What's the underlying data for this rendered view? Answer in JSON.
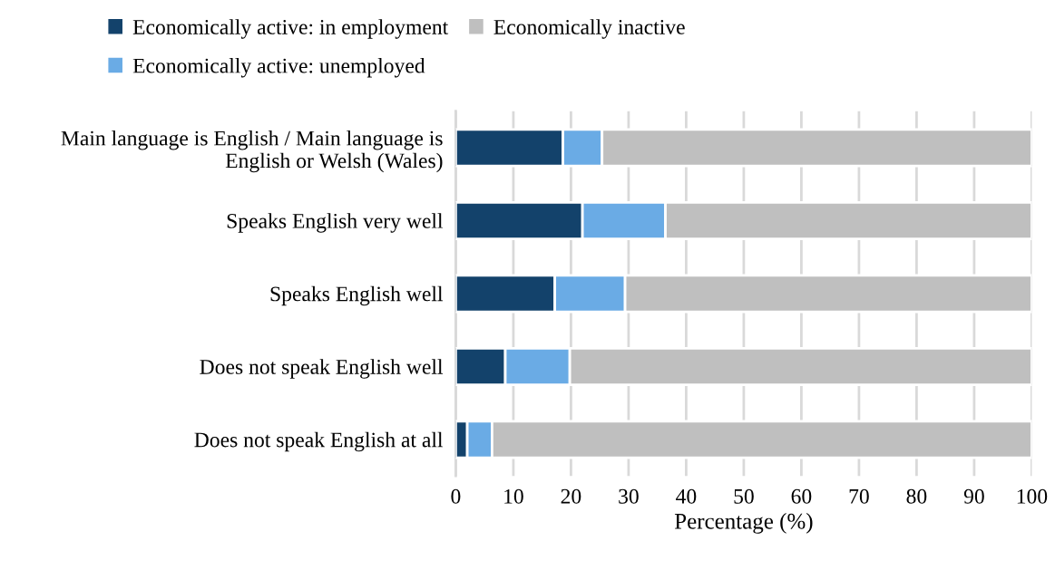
{
  "chart_data": {
    "type": "bar",
    "orientation": "horizontal",
    "stacked": true,
    "xlabel": "Percentage (%)",
    "categories": [
      "Main language is English / Main language is\nEnglish or Welsh (Wales)",
      "Speaks English very well",
      "Speaks English well",
      "Does not speak English well",
      "Does not speak English at all"
    ],
    "series": [
      {
        "name": "Economically active: in employment",
        "color": "#13426b",
        "values": [
          18.6,
          22.0,
          17.2,
          8.6,
          2.0
        ]
      },
      {
        "name": "Economically active: unemployed",
        "color": "#6aabe5",
        "values": [
          6.8,
          14.4,
          12.2,
          11.2,
          4.3
        ]
      },
      {
        "name": "Economically inactive",
        "color": "#bfbfbf",
        "values": [
          74.6,
          63.6,
          70.6,
          80.2,
          93.7
        ]
      }
    ],
    "xlim": [
      0,
      100
    ],
    "xticks": [
      0,
      10,
      20,
      30,
      40,
      50,
      60,
      70,
      80,
      90,
      100
    ],
    "grid": "x",
    "legend": "top"
  }
}
